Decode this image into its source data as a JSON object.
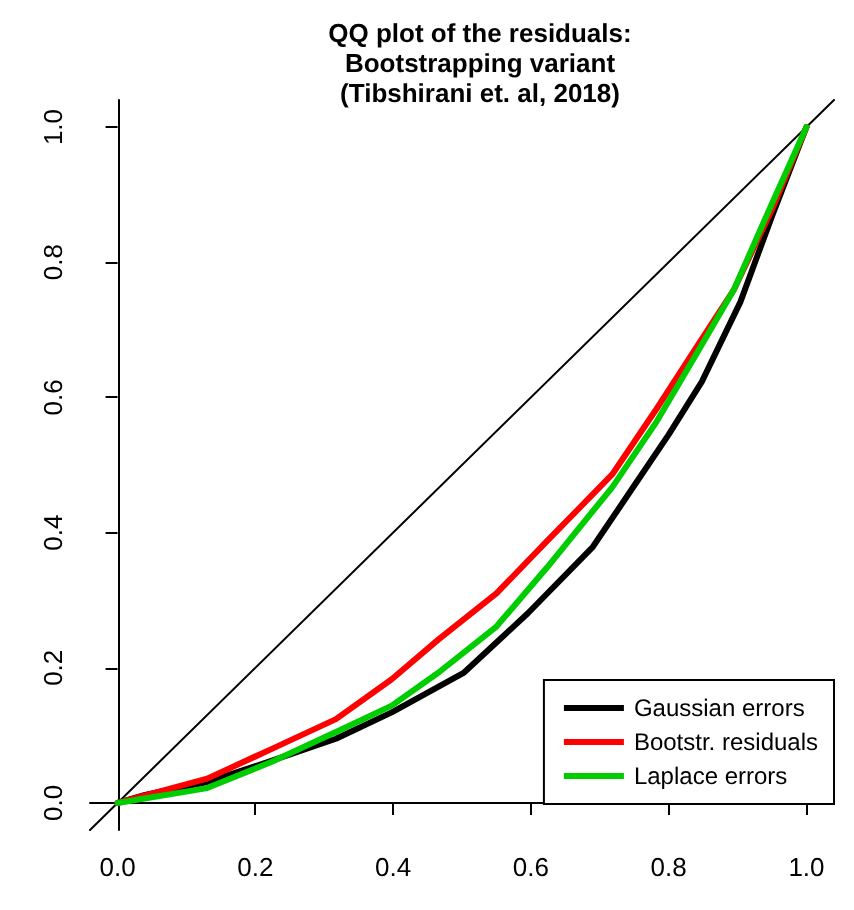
{
  "chart_data": {
    "type": "line",
    "title": "QQ plot of the residuals:\nBootstrapping variant\n(Tibshirani et. al, 2018)",
    "xlim": [
      -0.04,
      1.04
    ],
    "ylim": [
      -0.04,
      1.04
    ],
    "xticks": [
      {
        "value": 0,
        "label": "0.0"
      },
      {
        "value": 0.2,
        "label": "0.2"
      },
      {
        "value": 0.4,
        "label": "0.4"
      },
      {
        "value": 0.6,
        "label": "0.6"
      },
      {
        "value": 0.8,
        "label": "0.8"
      },
      {
        "value": 1,
        "label": "1.0"
      }
    ],
    "yticks": [
      {
        "value": 0,
        "label": "0.0"
      },
      {
        "value": 0.2,
        "label": "0.2"
      },
      {
        "value": 0.4,
        "label": "0.4"
      },
      {
        "value": 0.6,
        "label": "0.6"
      },
      {
        "value": 0.8,
        "label": "0.8"
      },
      {
        "value": 1,
        "label": "1.0"
      }
    ],
    "grid": false,
    "legend": "bottom right",
    "marker": "none",
    "line_style": "solid",
    "series": [
      {
        "name": "Gaussian errors",
        "color": "#000000",
        "x": [
          0,
          0.04,
          0.13,
          0.205,
          0.317,
          0.398,
          0.503,
          0.596,
          0.69,
          0.755,
          0.8,
          0.848,
          0.904,
          0.95,
          1
        ],
        "values": [
          0,
          0.012,
          0.031,
          0.056,
          0.095,
          0.134,
          0.193,
          0.281,
          0.379,
          0.477,
          0.545,
          0.623,
          0.741,
          0.868,
          1
        ]
      },
      {
        "name": "Bootstr. residuals",
        "color": "#ff0000",
        "x": [
          0,
          0.13,
          0.224,
          0.317,
          0.398,
          0.466,
          0.55,
          0.624,
          0.718,
          0.783,
          0.839,
          0.895,
          0.95,
          1
        ],
        "values": [
          0,
          0.036,
          0.08,
          0.124,
          0.183,
          0.242,
          0.31,
          0.388,
          0.486,
          0.584,
          0.672,
          0.76,
          0.878,
          1
        ]
      },
      {
        "name": "Laplace errors",
        "color": "#00cd00",
        "x": [
          0,
          0.13,
          0.224,
          0.317,
          0.398,
          0.466,
          0.55,
          0.624,
          0.718,
          0.783,
          0.839,
          0.895,
          0.95,
          1
        ],
        "values": [
          0,
          0.022,
          0.061,
          0.105,
          0.144,
          0.193,
          0.261,
          0.349,
          0.467,
          0.565,
          0.662,
          0.76,
          0.887,
          1
        ]
      },
      {
        "type": "line",
        "color": "#000000",
        "x": [
          -0.04,
          1.04
        ],
        "values": [
          -0.04,
          1.04
        ]
      }
    ]
  }
}
